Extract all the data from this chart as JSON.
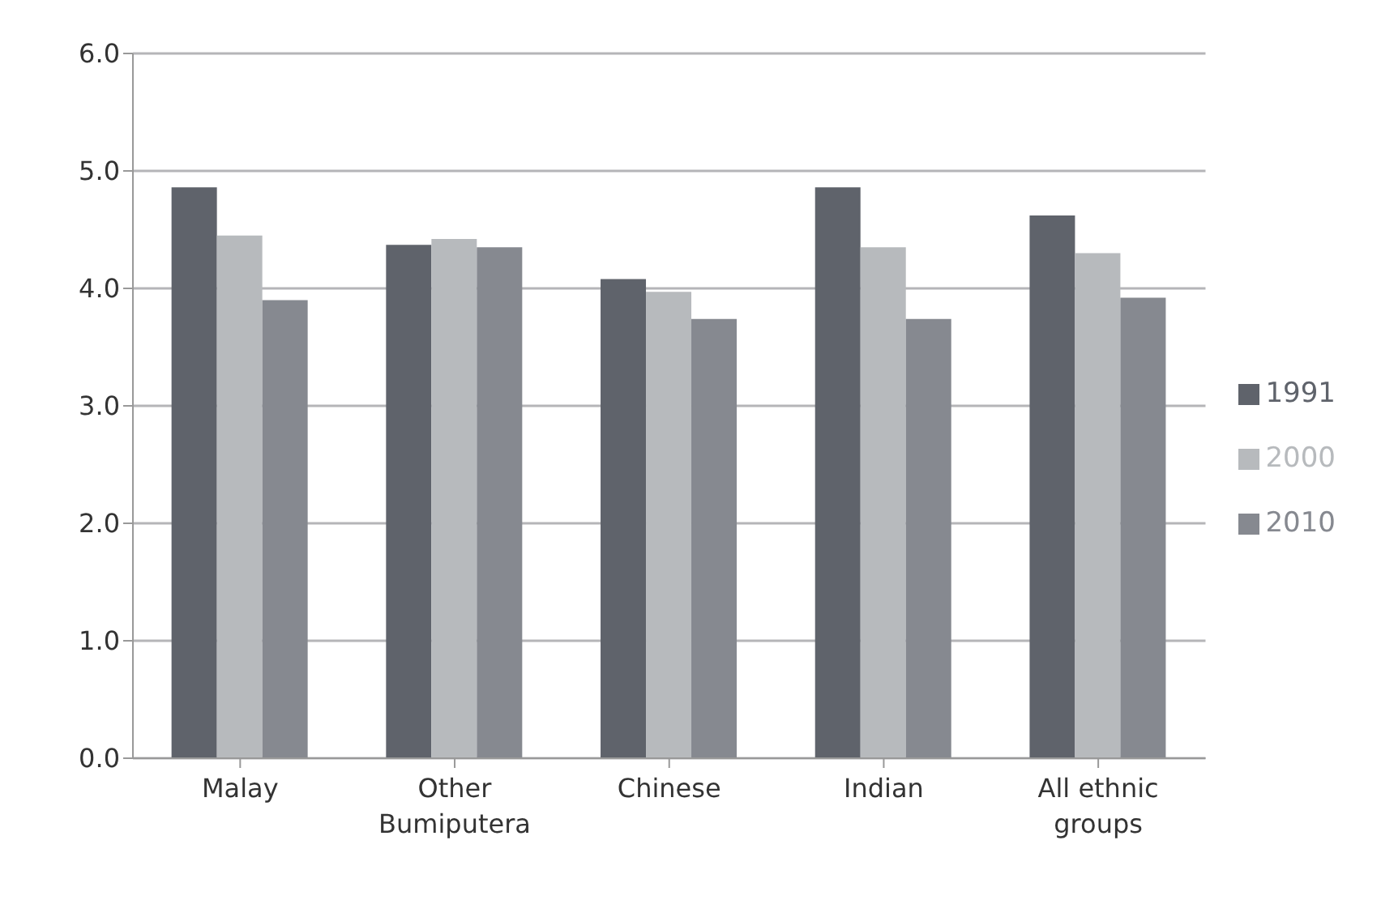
{
  "chart_data": {
    "type": "bar",
    "categories": [
      "Malay",
      "Other Bumiputera",
      "Chinese",
      "Indian",
      "All ethnic groups"
    ],
    "series": [
      {
        "name": "1991",
        "color": "#5f636b",
        "values": [
          4.86,
          4.37,
          4.08,
          4.86,
          4.62
        ]
      },
      {
        "name": "2000",
        "color": "#b7babd",
        "values": [
          4.45,
          4.42,
          3.97,
          4.35,
          4.3
        ]
      },
      {
        "name": "2010",
        "color": "#868990",
        "values": [
          3.9,
          4.35,
          3.74,
          3.74,
          3.92
        ]
      }
    ],
    "ylim": [
      0,
      6
    ],
    "yticks": [
      {
        "value": 0,
        "label": "0.0"
      },
      {
        "value": 1,
        "label": "1.0"
      },
      {
        "value": 2,
        "label": "2.0"
      },
      {
        "value": 3,
        "label": "3.0"
      },
      {
        "value": 4,
        "label": "4.0"
      },
      {
        "value": 5,
        "label": "5.0"
      },
      {
        "value": 6,
        "label": "6.0"
      }
    ],
    "grid": "y",
    "legend": "right"
  }
}
